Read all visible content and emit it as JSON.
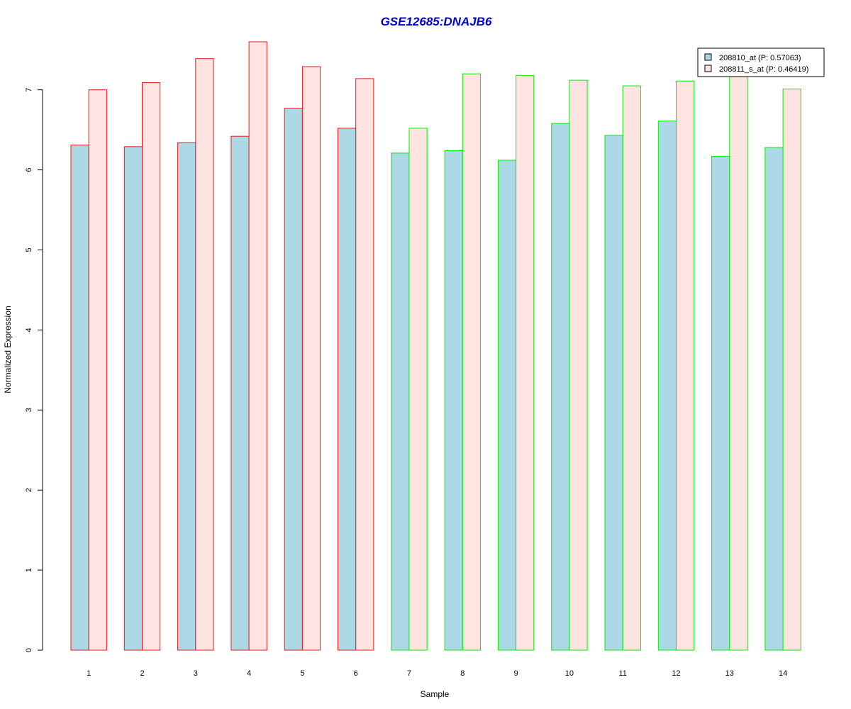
{
  "chart_data": {
    "type": "bar",
    "title": "GSE12685:DNAJB6",
    "xlabel": "Sample",
    "ylabel": "Normalized Expression",
    "ylim": [
      0,
      7.6
    ],
    "yticks": [
      0,
      1,
      2,
      3,
      4,
      5,
      6,
      7
    ],
    "categories": [
      "1",
      "2",
      "3",
      "4",
      "5",
      "6",
      "7",
      "8",
      "9",
      "10",
      "11",
      "12",
      "13",
      "14"
    ],
    "series": [
      {
        "name": "208810_at (P: 0.57063)",
        "fill": "#add8e6",
        "values": [
          6.31,
          6.29,
          6.34,
          6.42,
          6.77,
          6.52,
          6.21,
          6.24,
          6.12,
          6.58,
          6.43,
          6.61,
          6.17,
          6.28
        ]
      },
      {
        "name": "208811_s_at (P: 0.46419)",
        "fill": "#ffe4e1",
        "values": [
          7.0,
          7.09,
          7.39,
          7.6,
          7.29,
          7.14,
          6.52,
          7.2,
          7.18,
          7.12,
          7.05,
          7.11,
          7.2,
          7.01
        ]
      }
    ],
    "group_border_colors": [
      "#e41a1c",
      "#e41a1c",
      "#e41a1c",
      "#e41a1c",
      "#e41a1c",
      "#e41a1c",
      "#00ee00",
      "#00ee00",
      "#00ee00",
      "#00ee00",
      "#00ee00",
      "#00ee00",
      "#00ee00",
      "#00ee00"
    ],
    "title_color": "#0000cd",
    "legend_position": "top-right",
    "grid": false
  }
}
